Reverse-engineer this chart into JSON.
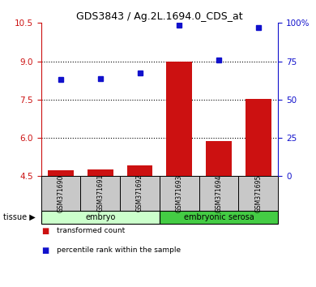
{
  "title": "GDS3843 / Ag.2L.1694.0_CDS_at",
  "samples": [
    "GSM371690",
    "GSM371691",
    "GSM371692",
    "GSM371693",
    "GSM371694",
    "GSM371695"
  ],
  "red_values": [
    4.72,
    4.76,
    4.92,
    9.0,
    5.87,
    7.52
  ],
  "blue_values_left": [
    8.3,
    8.32,
    8.55,
    10.42,
    9.06,
    10.32
  ],
  "ylim_left": [
    4.5,
    10.5
  ],
  "ylim_right": [
    0,
    100
  ],
  "yticks_left": [
    4.5,
    6.0,
    7.5,
    9.0,
    10.5
  ],
  "yticks_right": [
    0,
    25,
    50,
    75,
    100
  ],
  "ytick_labels_right": [
    "0",
    "25",
    "50",
    "75",
    "100%"
  ],
  "red_color": "#cc1111",
  "blue_color": "#1111cc",
  "bar_bottom": 4.5,
  "tissue_groups": [
    {
      "label": "embryo",
      "samples": [
        0,
        1,
        2
      ],
      "color": "#ccffcc"
    },
    {
      "label": "embryonic serosa",
      "samples": [
        3,
        4,
        5
      ],
      "color": "#44cc44"
    }
  ],
  "legend_items": [
    {
      "color": "#cc1111",
      "label": "transformed count"
    },
    {
      "color": "#1111cc",
      "label": "percentile rank within the sample"
    }
  ],
  "tissue_label": "tissue",
  "grid_yticks": [
    6.0,
    7.5,
    9.0
  ],
  "bar_width": 0.65,
  "marker": "s",
  "marker_size": 5
}
